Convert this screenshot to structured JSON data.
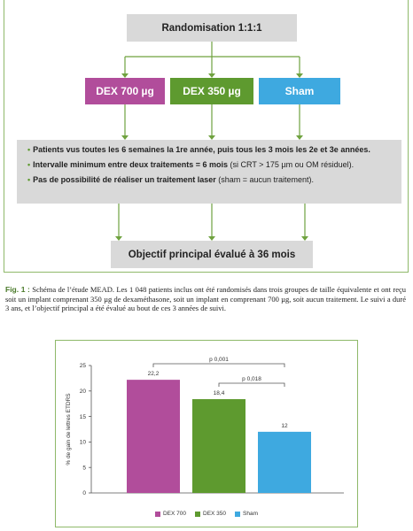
{
  "diagram": {
    "randomisation": "Randomisation 1:1:1",
    "arms": [
      "DEX 700 µg",
      "DEX 350 µg",
      "Sham"
    ],
    "colors": {
      "dex700": "#b14d9b",
      "dex350": "#5e9a2f",
      "sham": "#3ea9e0",
      "box": "#d9d9d9",
      "line": "#6fa23f"
    },
    "criteria": [
      {
        "bold": "Patients vus toutes les 6 semaines la 1re année, puis tous les 3 mois les 2e et 3e années.",
        "normal": ""
      },
      {
        "bold": "Intervalle minimum entre deux traitements = 6 mois",
        "normal": " (si CRT > 175 µm ou OM résiduel)."
      },
      {
        "bold": "Pas de possibilité de réaliser un traitement laser",
        "normal": " (sham = aucun traitement)."
      }
    ],
    "objective": "Objectif principal évalué à 36 mois"
  },
  "caption": {
    "label": "Fig. 1 :",
    "text": " Schéma de l’étude MEAD. Les 1 048 patients inclus ont été randomisés dans trois groupes de taille équivalente et ont reçu soit un implant comprenant 350 µg de dexaméthasone, soit un implant en comprenant 700 µg, soit aucun traitement. Le suivi a duré 3 ans, et l’objectif principal a été évalué au bout de ces 3 années de suivi."
  },
  "chart_data": {
    "type": "bar",
    "categories": [
      "DEX 700",
      "DEX 350",
      "Sham"
    ],
    "values": [
      22.2,
      18.4,
      12
    ],
    "value_labels": [
      "22,2",
      "18,4",
      "12"
    ],
    "colors": [
      "#b14d9b",
      "#5e9a2f",
      "#3ea9e0"
    ],
    "ylabel": "% de gain de lettres ETDRS",
    "ylim": [
      0,
      25
    ],
    "yticks": [
      0,
      5,
      10,
      15,
      20,
      25
    ],
    "grid": false,
    "legend": {
      "placement": "bottom",
      "entries": [
        "DEX 700",
        "DEX 350",
        "Sham"
      ]
    },
    "annotations": [
      {
        "text": "p 0,001",
        "from": "DEX 700",
        "to": "Sham"
      },
      {
        "text": "p 0,018",
        "from": "DEX 350",
        "to": "Sham"
      }
    ]
  }
}
